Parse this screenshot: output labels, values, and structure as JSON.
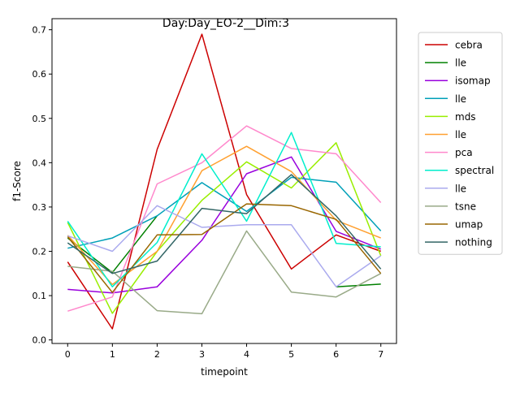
{
  "chart_data": {
    "type": "line",
    "title": "Day:Day_EO-2__Dim:3",
    "xlabel": "timepoint",
    "ylabel": "f1-Score",
    "x": [
      0,
      1,
      2,
      3,
      4,
      5,
      6,
      7
    ],
    "xlim": [
      -0.35,
      7.35
    ],
    "ylim": [
      -0.008,
      0.725
    ],
    "xticks": [
      0,
      1,
      2,
      3,
      4,
      5,
      6,
      7
    ],
    "yticks": [
      0.0,
      0.1,
      0.2,
      0.3,
      0.4,
      0.5,
      0.6,
      0.7
    ],
    "ytick_labels": [
      "0.0",
      "0.1",
      "0.2",
      "0.3",
      "0.4",
      "0.5",
      "0.6",
      "0.7"
    ],
    "grid": false,
    "legend_position": "outside-right",
    "series": [
      {
        "name": "cebra",
        "color": "#cc0000",
        "values": [
          0.176,
          0.025,
          0.43,
          0.69,
          0.328,
          0.16,
          0.237,
          0.2
        ]
      },
      {
        "name": "lle",
        "color": "#008000",
        "values": [
          0.23,
          0.152,
          0.28,
          null,
          null,
          null,
          0.12,
          0.126
        ]
      },
      {
        "name": "isomap",
        "color": "#9900dd",
        "values": [
          0.114,
          0.106,
          0.12,
          0.225,
          0.375,
          0.413,
          0.245,
          0.205
        ]
      },
      {
        "name": "lle",
        "color": "#00a0b8",
        "values": [
          0.207,
          0.23,
          0.28,
          0.355,
          0.29,
          0.367,
          0.356,
          0.246
        ]
      },
      {
        "name": "mds",
        "color": "#99ee00",
        "values": [
          0.265,
          0.06,
          0.2,
          0.315,
          0.402,
          0.343,
          0.445,
          0.19
        ]
      },
      {
        "name": "lle",
        "color": "#ffa030",
        "values": [
          0.236,
          0.125,
          0.2,
          0.382,
          0.437,
          0.38,
          0.27,
          0.23
        ]
      },
      {
        "name": "pca",
        "color": "#ff88cc",
        "values": [
          0.065,
          0.097,
          0.352,
          0.4,
          0.483,
          0.432,
          0.42,
          0.31
        ]
      },
      {
        "name": "spectral",
        "color": "#00eecc",
        "values": [
          0.268,
          0.12,
          0.22,
          0.42,
          0.268,
          0.468,
          0.218,
          0.21
        ]
      },
      {
        "name": "lle",
        "color": "#aaaaee",
        "values": [
          0.235,
          0.2,
          0.303,
          0.254,
          0.26,
          0.26,
          0.12,
          0.19
        ]
      },
      {
        "name": "tsne",
        "color": "#99aa88",
        "values": [
          0.166,
          0.155,
          0.066,
          0.059,
          0.246,
          0.108,
          0.097,
          0.15
        ]
      },
      {
        "name": "umap",
        "color": "#996600",
        "values": [
          0.233,
          0.107,
          0.237,
          0.238,
          0.307,
          0.303,
          0.272,
          0.15
        ]
      },
      {
        "name": "nothing",
        "color": "#336666",
        "values": [
          0.219,
          0.15,
          0.178,
          0.297,
          0.285,
          0.373,
          0.28,
          0.16
        ]
      }
    ]
  }
}
